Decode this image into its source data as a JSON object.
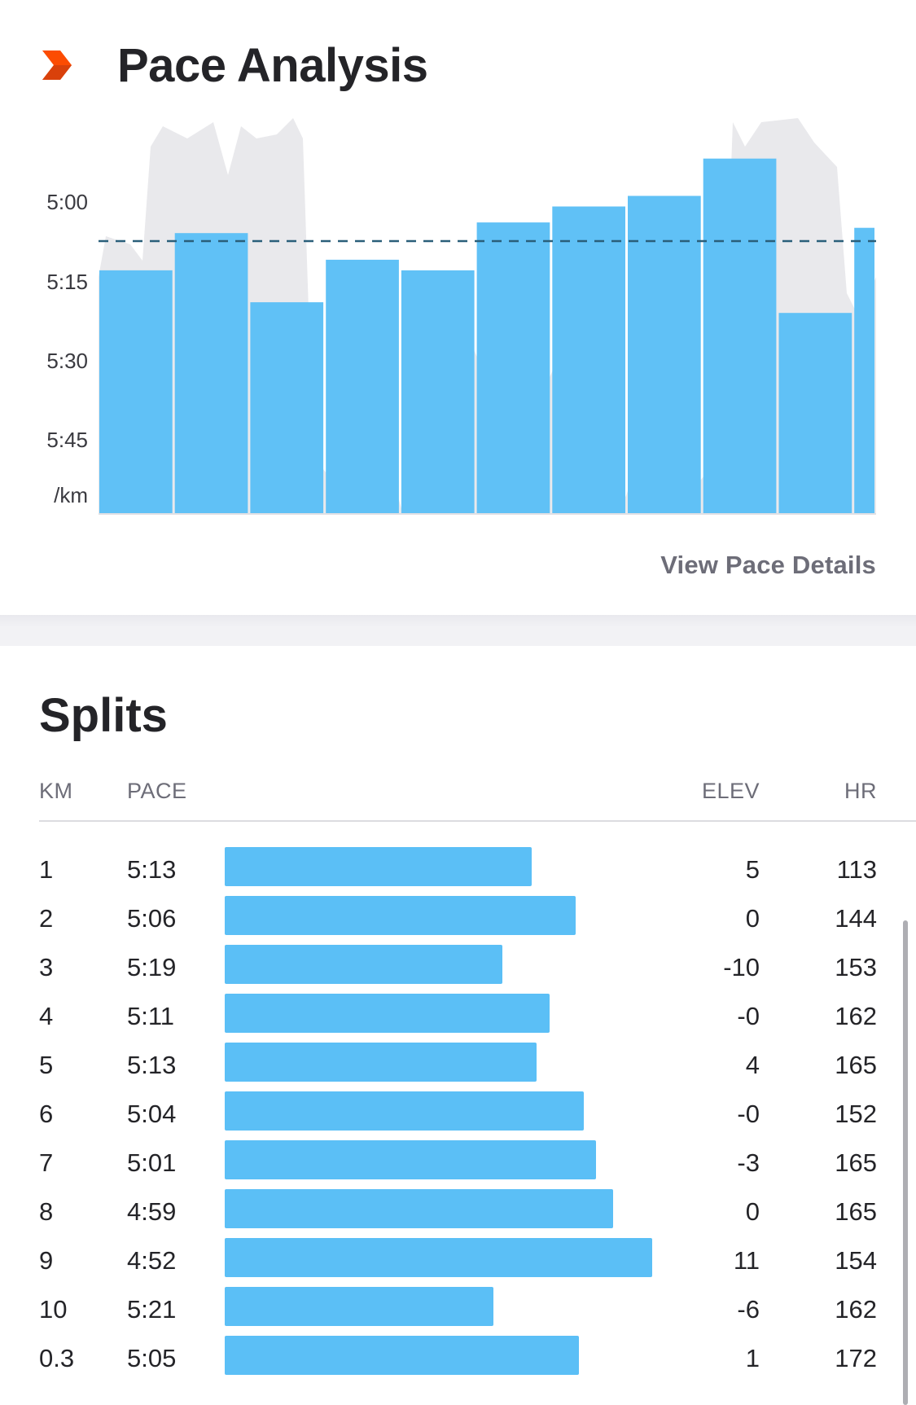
{
  "pace_analysis": {
    "title": "Pace Analysis",
    "brand_icon": "chevron-logo-icon",
    "view_details_label": "View Pace Details",
    "colors": {
      "bar": "#5bbff6",
      "elevation": "#e9e9ec",
      "avg_line": "#2a5f7a",
      "brand": "#fc4c02"
    }
  },
  "chart_data": {
    "type": "bar",
    "y_axis_labels": [
      "5:00",
      "5:15",
      "5:30",
      "5:45"
    ],
    "y_unit_label": "/km",
    "ylim": [
      "4:44",
      "6:00"
    ],
    "inverted_y": true,
    "categories": [
      "1",
      "2",
      "3",
      "4",
      "5",
      "6",
      "7",
      "8",
      "9",
      "10",
      "0.3"
    ],
    "pace_seconds": [
      313,
      306,
      319,
      311,
      313,
      304,
      301,
      299,
      292,
      321,
      305
    ],
    "widths_km": [
      1,
      1,
      1,
      1,
      1,
      1,
      1,
      1,
      1,
      1,
      0.3
    ],
    "average_pace_seconds": 307.5,
    "average_line": "dashed",
    "background_series": "elevation-profile"
  },
  "splits": {
    "title": "Splits",
    "headers": {
      "km": "KM",
      "pace": "PACE",
      "elev": "ELEV",
      "hr": "HR"
    },
    "rows": [
      {
        "km": "1",
        "pace": "5:13",
        "elev": "5",
        "hr": "113",
        "fraction": 0.539
      },
      {
        "km": "2",
        "pace": "5:06",
        "elev": "0",
        "hr": "144",
        "fraction": 0.615
      },
      {
        "km": "3",
        "pace": "5:19",
        "elev": "-10",
        "hr": "153",
        "fraction": 0.487
      },
      {
        "km": "4",
        "pace": "5:11",
        "elev": "-0",
        "hr": "162",
        "fraction": 0.57
      },
      {
        "km": "5",
        "pace": "5:13",
        "elev": "4",
        "hr": "165",
        "fraction": 0.547
      },
      {
        "km": "6",
        "pace": "5:04",
        "elev": "-0",
        "hr": "152",
        "fraction": 0.63
      },
      {
        "km": "7",
        "pace": "5:01",
        "elev": "-3",
        "hr": "165",
        "fraction": 0.652
      },
      {
        "km": "8",
        "pace": "4:59",
        "elev": "0",
        "hr": "165",
        "fraction": 0.682
      },
      {
        "km": "9",
        "pace": "4:52",
        "elev": "11",
        "hr": "154",
        "fraction": 0.75
      },
      {
        "km": "10",
        "pace": "5:21",
        "elev": "-6",
        "hr": "162",
        "fraction": 0.472
      },
      {
        "km": "0.3",
        "pace": "5:05",
        "elev": "1",
        "hr": "172",
        "fraction": 0.622
      }
    ]
  }
}
